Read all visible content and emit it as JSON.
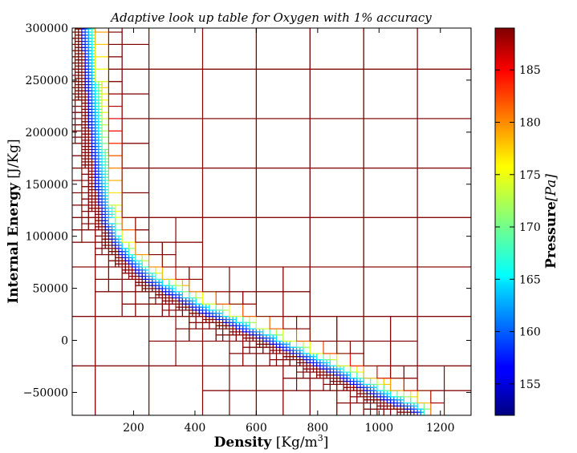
{
  "chart_data": {
    "type": "heatmap",
    "title": "Adaptive look up table for Oxygen with 1% accuracy",
    "xlabel_bold": "Density",
    "xlabel_unit": "[Kg/m",
    "xlabel_sup": "3",
    "xlabel_close": "]",
    "ylabel_bold": "Internal Energy",
    "ylabel_unit": "[J/Kg]",
    "xlim": [
      0,
      1300
    ],
    "ylim": [
      -72000,
      300000
    ],
    "x_ticks": [
      200,
      400,
      600,
      800,
      1000,
      1200
    ],
    "x_tick_labels": [
      "200",
      "400",
      "600",
      "800",
      "1000",
      "1200"
    ],
    "y_ticks": [
      300000,
      250000,
      200000,
      150000,
      100000,
      50000,
      0,
      -50000
    ],
    "y_tick_labels": [
      "300000",
      "250000",
      "200000",
      "150000",
      "100000",
      "50000",
      "0",
      "−50000"
    ],
    "colorbar": {
      "label_bold": "Pressure",
      "label_unit": "[Pa]",
      "range": [
        152,
        189
      ],
      "ticks": [
        155,
        160,
        165,
        170,
        175,
        180,
        185
      ],
      "tick_labels": [
        "155",
        "160",
        "165",
        "170",
        "175",
        "180",
        "185"
      ],
      "colormap": "jet"
    },
    "saturation_curve": [
      [
        30,
        300000
      ],
      [
        45,
        250000
      ],
      [
        60,
        200000
      ],
      [
        78,
        150000
      ],
      [
        100,
        115000
      ],
      [
        128,
        95000
      ],
      [
        170,
        78000
      ],
      [
        250,
        55000
      ],
      [
        400,
        30000
      ],
      [
        550,
        10000
      ],
      [
        700,
        -10000
      ],
      [
        850,
        -32000
      ],
      [
        1000,
        -55000
      ],
      [
        1120,
        -70000
      ]
    ],
    "colors": {
      "high": "#800000",
      "low": "#000080"
    }
  }
}
